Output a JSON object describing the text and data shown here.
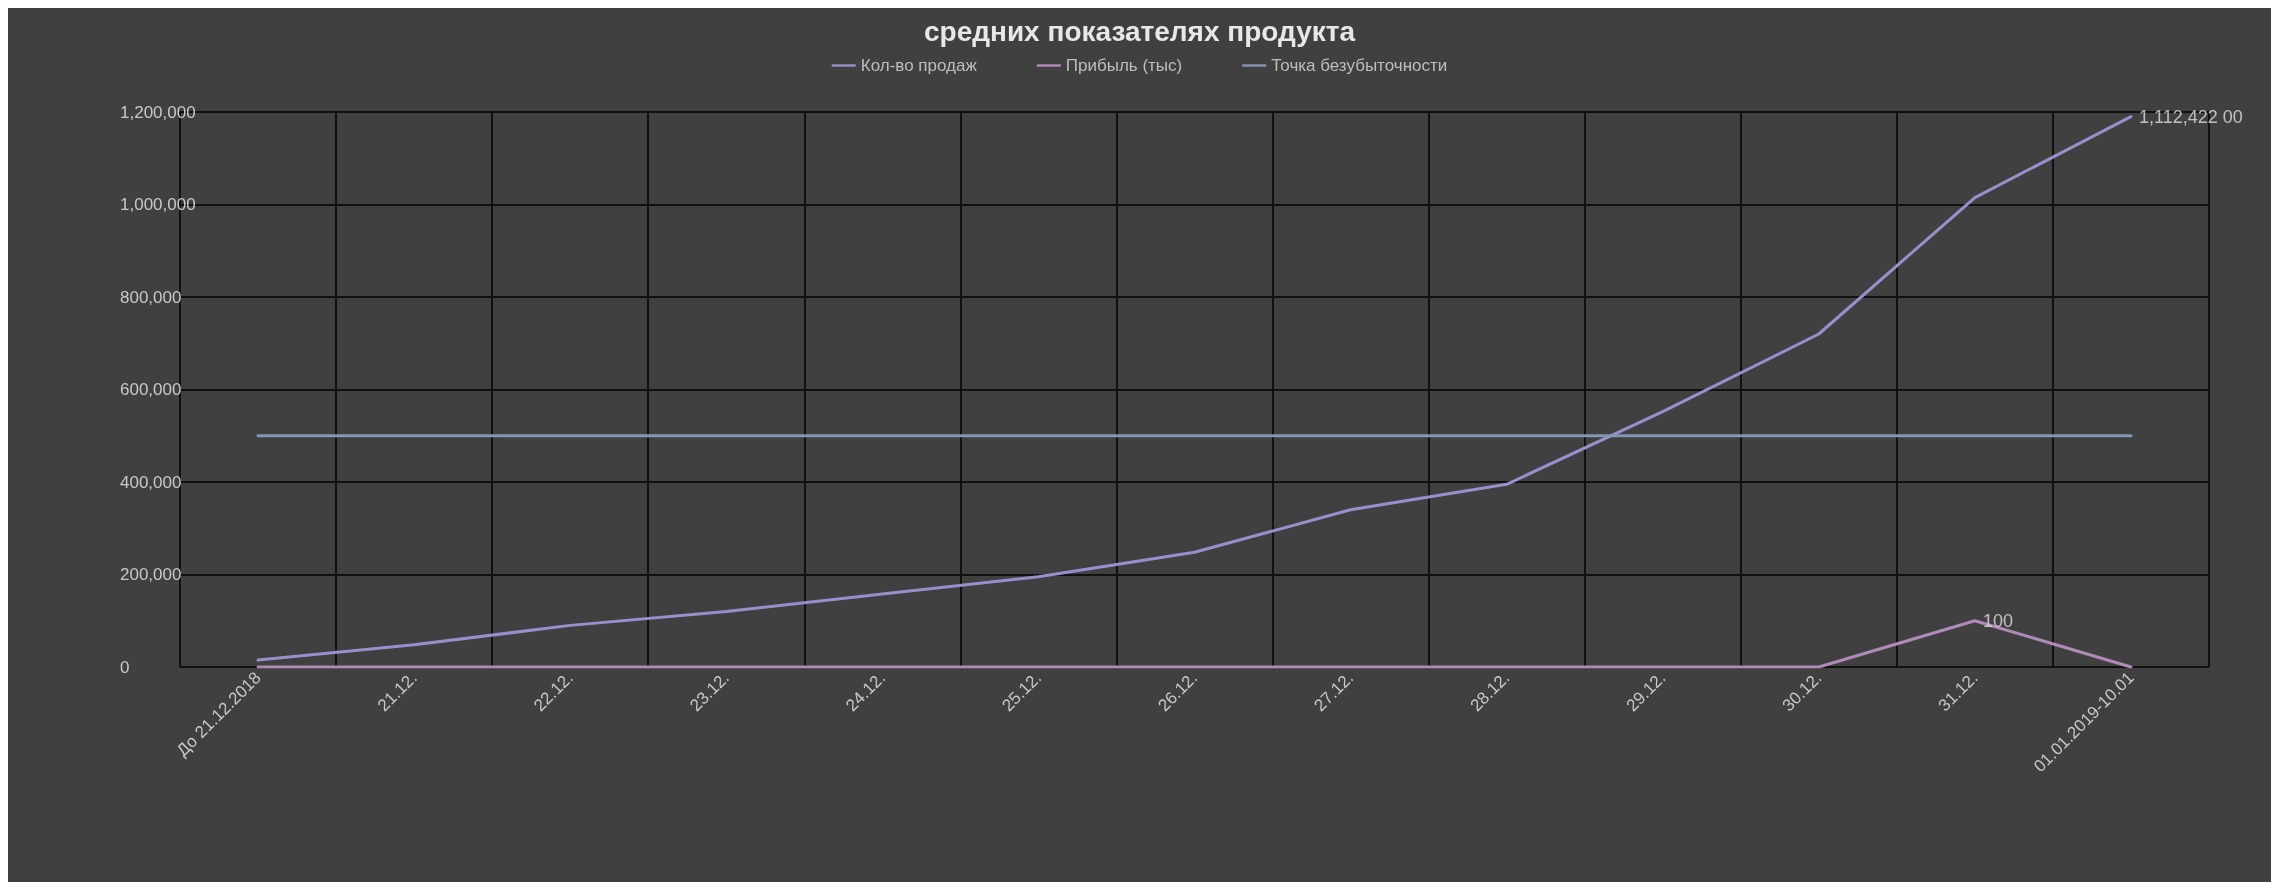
{
  "chart_data": {
    "type": "line",
    "title": "средних показателях продукта",
    "categories": [
      "До 21.12.2018",
      "21.12.",
      "22.12.",
      "23.12.",
      "24.12.",
      "25.12.",
      "26.12.",
      "27.12.",
      "28.12.",
      "29.12.",
      "30.12.",
      "31.12.",
      "01.01.2019-10.01"
    ],
    "series": [
      {
        "name": "Кол-во продаж",
        "color": "#9890cc",
        "values": [
          15000,
          48000,
          90000,
          120000,
          158000,
          195000,
          248000,
          340000,
          395000,
          552000,
          720000,
          1015000,
          1190000
        ]
      },
      {
        "name": "Прибыль (тыс)",
        "color": "#b08ab8",
        "values": [
          0,
          0,
          0,
          0,
          0,
          0,
          0,
          0,
          0,
          0,
          0,
          100000,
          0
        ]
      },
      {
        "name": "Точка безубыточности",
        "color": "#8396b4",
        "values": [
          500000,
          500000,
          500000,
          500000,
          500000,
          500000,
          500000,
          500000,
          500000,
          500000,
          500000,
          500000,
          500000
        ]
      }
    ],
    "annotations": [
      {
        "text": "1,112,422 00",
        "x": "01.01.2019-10.01",
        "y": 1190000
      },
      {
        "text": "100",
        "x": "31.12.",
        "y": 100000
      }
    ],
    "ylim": [
      0,
      1200000
    ],
    "yticks": [
      0,
      {
        "value": 200000,
        "label": "200,000"
      },
      {
        "value": 400000,
        "label": "400,000"
      },
      {
        "value": 600000,
        "label": "600,000"
      },
      {
        "value": 800000,
        "label": "800,000"
      },
      {
        "value": 1000000,
        "label": "1,000,000"
      },
      {
        "value": 1200000,
        "label": "1,200,000"
      }
    ],
    "grid": true,
    "legend": "top",
    "marker": "none",
    "line_style": "solid"
  }
}
